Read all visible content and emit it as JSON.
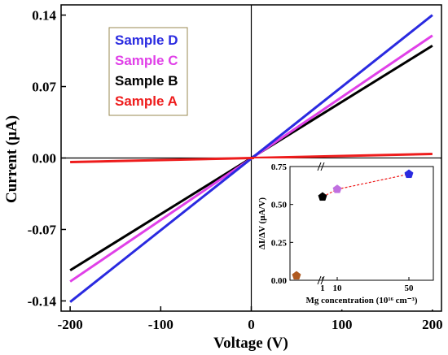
{
  "chart_data": [
    {
      "type": "line",
      "title": "",
      "xlabel": "Voltage (V)",
      "ylabel": "Current (μA)",
      "xlim": [
        -210,
        210
      ],
      "ylim": [
        -0.15,
        0.15
      ],
      "x_ticks": [
        -200,
        -100,
        0,
        100,
        200
      ],
      "x_tick_labels": [
        "-200",
        "-100",
        "0",
        "100",
        "200"
      ],
      "y_ticks": [
        -0.14,
        -0.07,
        0.0,
        0.07,
        0.14
      ],
      "y_tick_labels": [
        "-0.14",
        "-0.07",
        "0.00",
        "0.07",
        "0.14"
      ],
      "legend_placement": "top-left",
      "series": [
        {
          "name": "Sample D",
          "color": "#2a2ae0",
          "x": [
            -200,
            200
          ],
          "y": [
            -0.141,
            0.14
          ]
        },
        {
          "name": "Sample C",
          "color": "#e040e8",
          "x": [
            -200,
            200
          ],
          "y": [
            -0.121,
            0.12
          ]
        },
        {
          "name": "Sample B",
          "color": "#000000",
          "x": [
            -200,
            200
          ],
          "y": [
            -0.11,
            0.11
          ]
        },
        {
          "name": "Sample A",
          "color": "#ee1c1c",
          "x": [
            -200,
            200
          ],
          "y": [
            -0.004,
            0.004
          ]
        }
      ]
    },
    {
      "type": "scatter",
      "title": "",
      "xlabel": "Mg concentration (10¹⁶ cm⁻³)",
      "ylabel": "ΔI/ΔV (μA/V)",
      "x_tick_labels": [
        "1",
        "10",
        "50"
      ],
      "y_tick_labels": [
        "0.00",
        "0.25",
        "0.50",
        "0.75"
      ],
      "ylim": [
        0,
        0.75
      ],
      "axis_break": true,
      "points": [
        {
          "x": 0,
          "y": 0.03,
          "color": "#b05a20"
        },
        {
          "x": 1,
          "y": 0.55,
          "color": "#000000"
        },
        {
          "x": 10,
          "y": 0.6,
          "color": "#c070e0"
        },
        {
          "x": 50,
          "y": 0.7,
          "color": "#2a2ae0"
        }
      ]
    }
  ]
}
